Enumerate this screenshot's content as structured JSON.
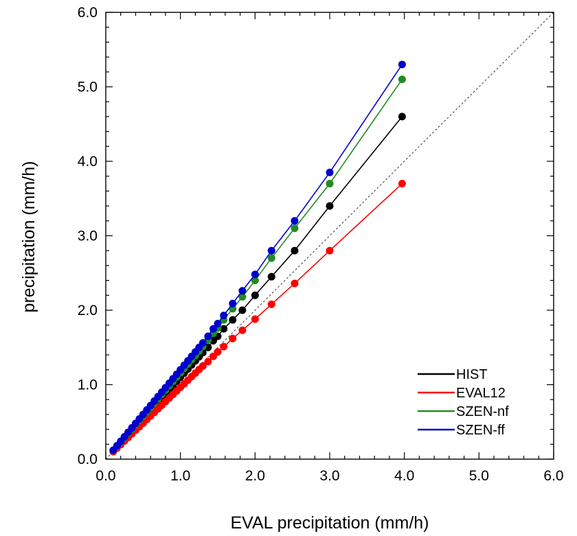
{
  "chart_data": {
    "type": "line",
    "xlabel": "EVAL precipitation (mm/h)",
    "ylabel": "precipitation (mm/h)",
    "xlim": [
      0,
      6
    ],
    "ylim": [
      0,
      6
    ],
    "xticks": [
      "0.0",
      "1.0",
      "2.0",
      "3.0",
      "4.0",
      "5.0",
      "6.0"
    ],
    "yticks": [
      "0.0",
      "1.0",
      "2.0",
      "3.0",
      "4.0",
      "5.0",
      "6.0"
    ],
    "grid": false,
    "reference_line": "1:1",
    "legend_position": "bottom-right",
    "x": [
      0.1,
      0.15,
      0.2,
      0.25,
      0.3,
      0.35,
      0.4,
      0.45,
      0.5,
      0.55,
      0.6,
      0.65,
      0.7,
      0.75,
      0.8,
      0.85,
      0.9,
      0.95,
      1.0,
      1.05,
      1.1,
      1.15,
      1.2,
      1.25,
      1.3,
      1.37,
      1.44,
      1.5,
      1.58,
      1.7,
      1.83,
      2.0,
      2.22,
      2.53,
      3.0,
      3.97
    ],
    "series": [
      {
        "name": "HIST",
        "color": "#000000",
        "values": [
          0.11,
          0.165,
          0.22,
          0.275,
          0.33,
          0.385,
          0.44,
          0.495,
          0.55,
          0.605,
          0.66,
          0.715,
          0.77,
          0.825,
          0.88,
          0.935,
          0.99,
          1.045,
          1.1,
          1.155,
          1.21,
          1.265,
          1.32,
          1.375,
          1.43,
          1.5,
          1.59,
          1.65,
          1.75,
          1.87,
          2.0,
          2.2,
          2.45,
          2.8,
          3.4,
          4.6
        ]
      },
      {
        "name": "EVAL12",
        "color": "#ff0000",
        "values": [
          0.1,
          0.148,
          0.196,
          0.244,
          0.292,
          0.34,
          0.388,
          0.436,
          0.484,
          0.532,
          0.58,
          0.628,
          0.676,
          0.724,
          0.772,
          0.82,
          0.868,
          0.916,
          0.964,
          1.012,
          1.06,
          1.108,
          1.156,
          1.204,
          1.25,
          1.31,
          1.38,
          1.44,
          1.51,
          1.62,
          1.73,
          1.88,
          2.08,
          2.36,
          2.8,
          3.7
        ]
      },
      {
        "name": "SZEN-nf",
        "color": "#228b22",
        "values": [
          0.115,
          0.173,
          0.231,
          0.289,
          0.347,
          0.405,
          0.463,
          0.521,
          0.579,
          0.637,
          0.695,
          0.753,
          0.811,
          0.869,
          0.927,
          0.985,
          1.043,
          1.101,
          1.16,
          1.218,
          1.276,
          1.334,
          1.392,
          1.45,
          1.51,
          1.6,
          1.69,
          1.76,
          1.87,
          2.02,
          2.18,
          2.4,
          2.7,
          3.1,
          3.7,
          5.1
        ]
      },
      {
        "name": "SZEN-ff",
        "color": "#0000cd",
        "values": [
          0.12,
          0.18,
          0.24,
          0.3,
          0.36,
          0.42,
          0.48,
          0.54,
          0.6,
          0.66,
          0.72,
          0.78,
          0.84,
          0.9,
          0.96,
          1.02,
          1.08,
          1.14,
          1.2,
          1.26,
          1.32,
          1.38,
          1.44,
          1.5,
          1.56,
          1.65,
          1.75,
          1.82,
          1.93,
          2.09,
          2.26,
          2.48,
          2.8,
          3.2,
          3.85,
          5.3
        ]
      }
    ]
  }
}
